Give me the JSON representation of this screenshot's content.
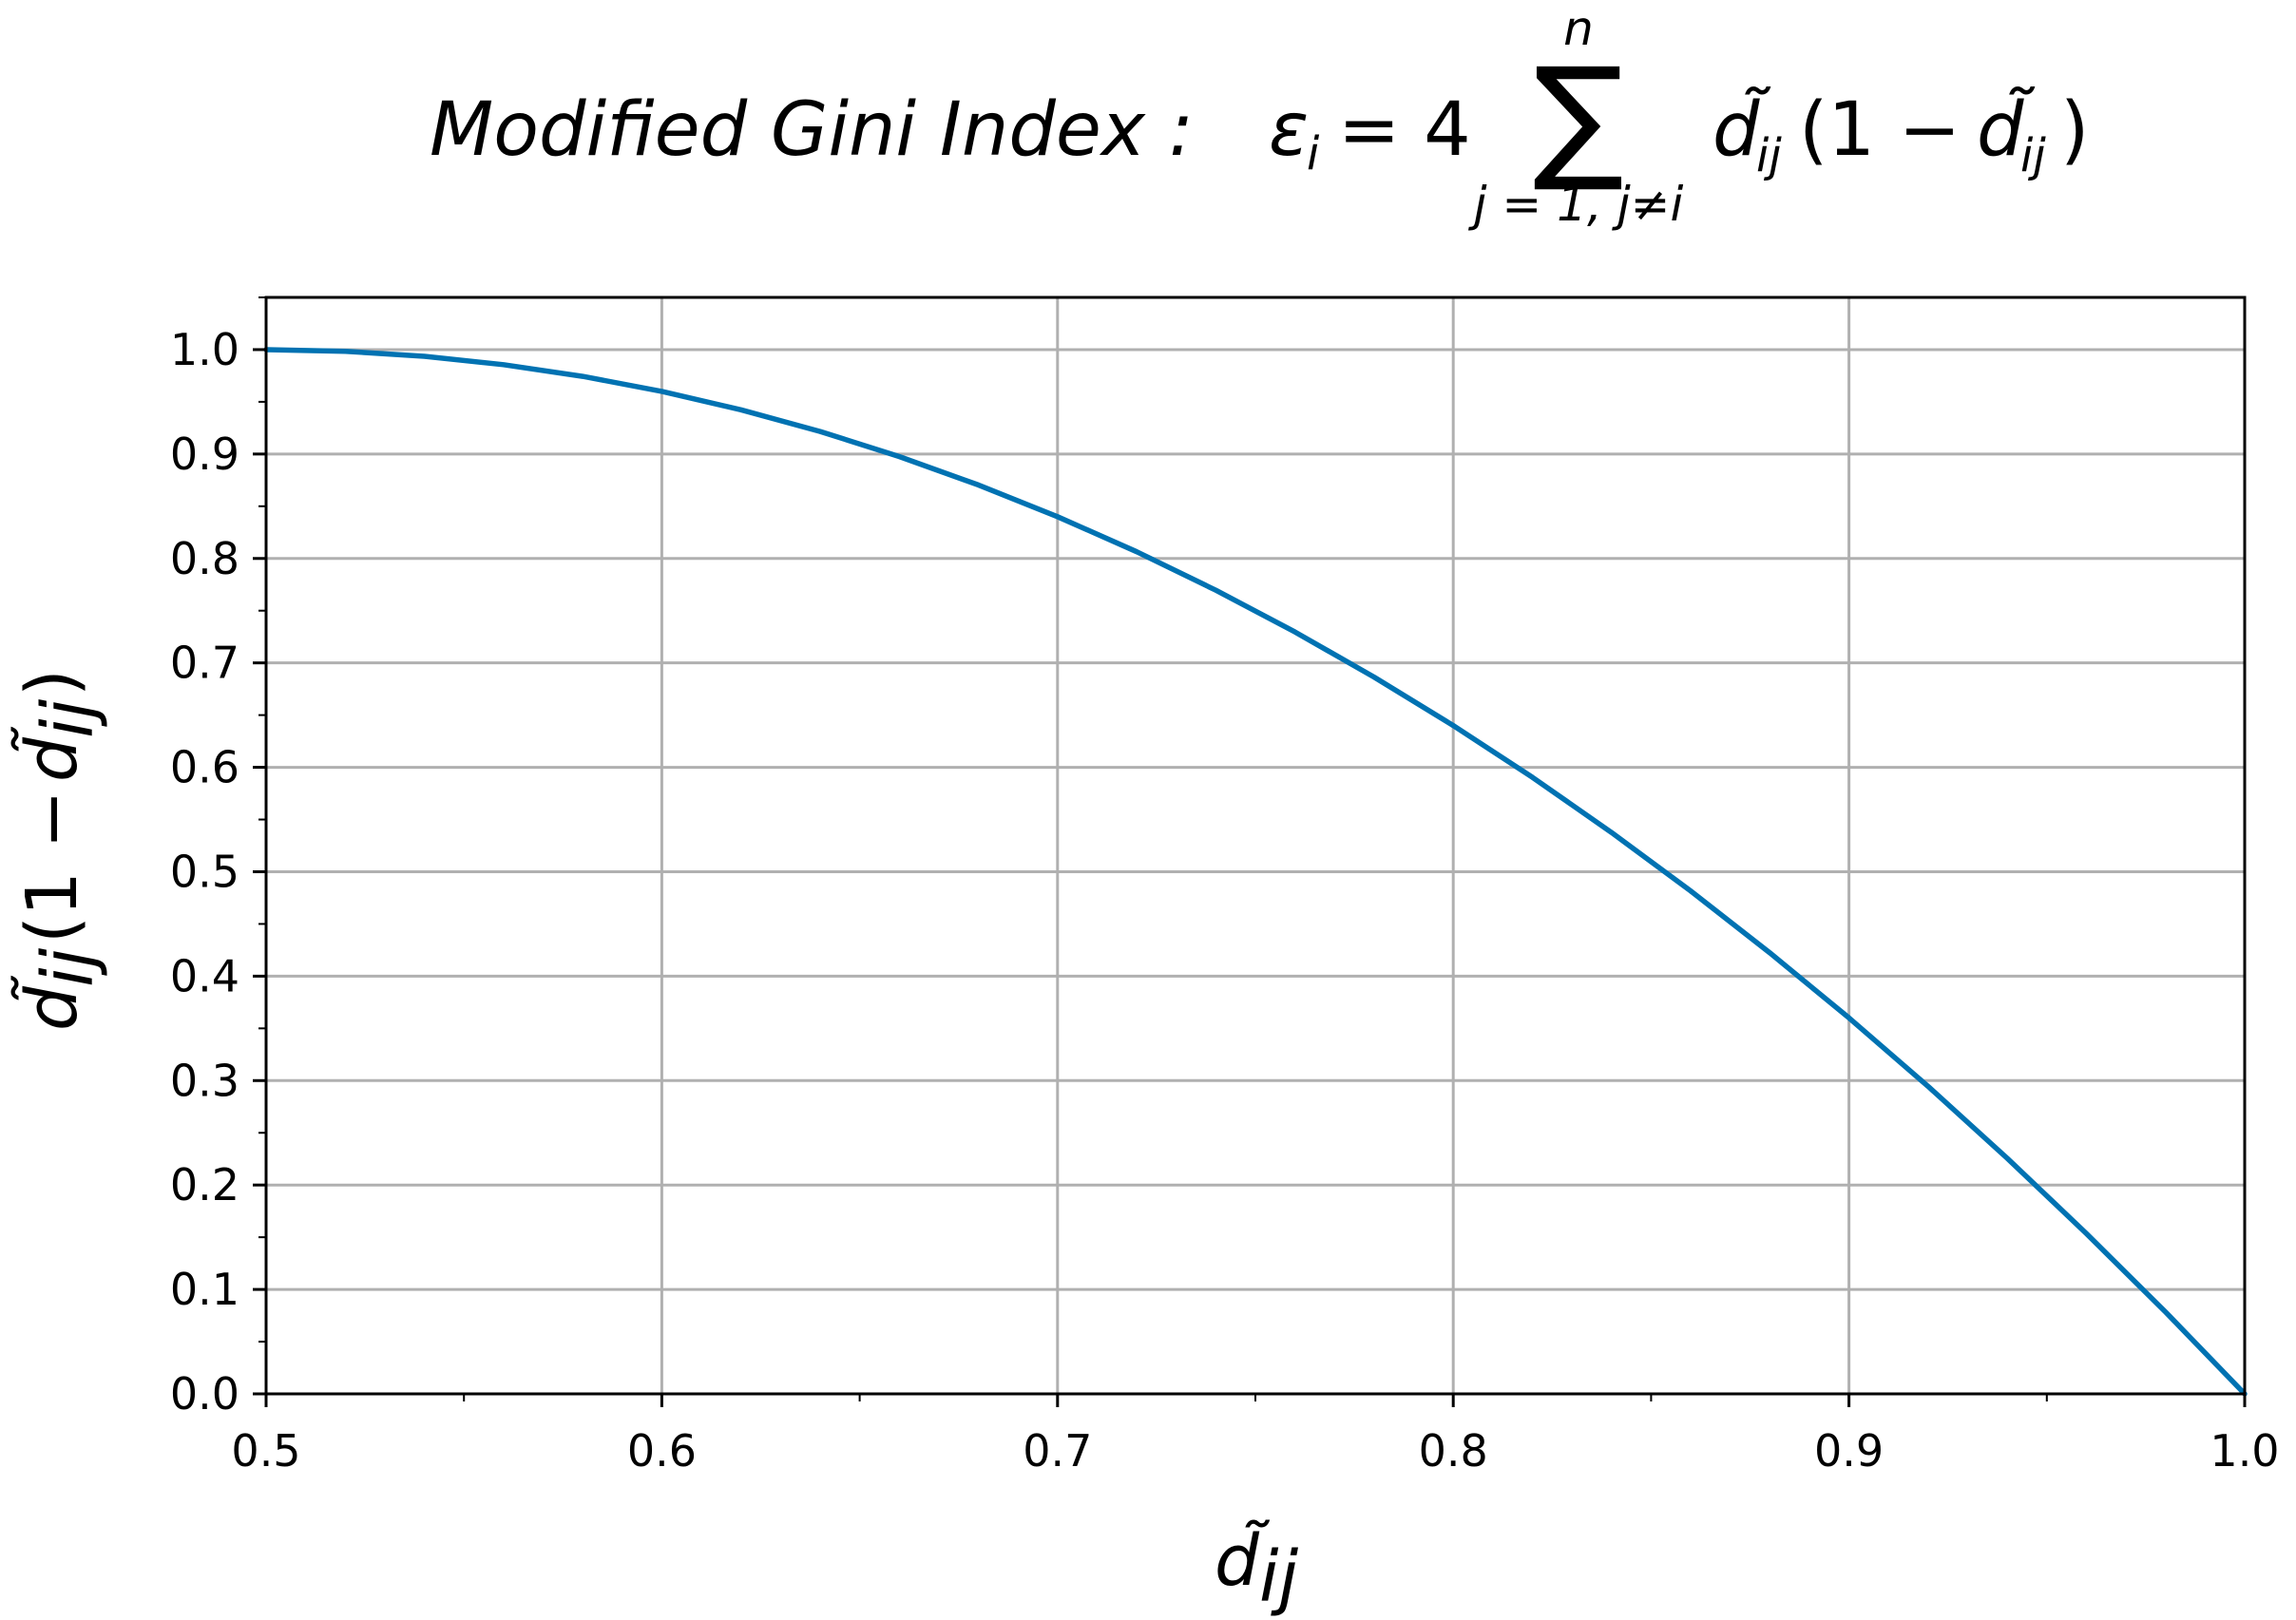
{
  "chart_data": {
    "type": "line",
    "title": {
      "lead": "Modified Gini Index :",
      "epsilon": "ε",
      "sub_i": "i",
      "equals_four": "= 4",
      "sum_symbol": "∑",
      "sum_upper": "n",
      "sum_lower": "j = 1, j≠i",
      "term_d": "d̃",
      "term_sub": "ij",
      "term_paren_open": "(1 − ",
      "term_d2": "d̃",
      "term_sub2": "ij",
      "term_paren_close": ")"
    },
    "xlabel": {
      "main": "d̃",
      "sub": "ij"
    },
    "ylabel": {
      "d": "d̃",
      "sub": "ij",
      "mid": "(1 − ",
      "d2": "d̃",
      "sub2": "ij",
      "end": ")"
    },
    "xlim": [
      0.5,
      1.0
    ],
    "ylim": [
      0.0,
      1.05
    ],
    "grid": true,
    "x_ticks": [
      0.5,
      0.6,
      0.7,
      0.8,
      0.9,
      1.0
    ],
    "x_tick_labels": [
      "0.5",
      "0.6",
      "0.7",
      "0.8",
      "0.9",
      "1.0"
    ],
    "y_ticks": [
      0.0,
      0.1,
      0.2,
      0.3,
      0.4,
      0.5,
      0.6,
      0.7,
      0.8,
      0.9,
      1.0
    ],
    "y_tick_labels": [
      "0.0",
      "0.1",
      "0.2",
      "0.3",
      "0.4",
      "0.5",
      "0.6",
      "0.7",
      "0.8",
      "0.9",
      "1.0"
    ],
    "x_minor_step": 0.05,
    "y_minor_step": 0.05,
    "series": [
      {
        "color": "#0072b2",
        "x": [
          0.5,
          0.52,
          0.54,
          0.56,
          0.58,
          0.6,
          0.62,
          0.64,
          0.66,
          0.68,
          0.7,
          0.72,
          0.74,
          0.76,
          0.78,
          0.8,
          0.82,
          0.84,
          0.86,
          0.88,
          0.9,
          0.92,
          0.94,
          0.96,
          0.98,
          1.0
        ],
        "y": [
          1.0,
          0.9984,
          0.9936,
          0.9856,
          0.9744,
          0.96,
          0.9424,
          0.9216,
          0.8976,
          0.8704,
          0.84,
          0.8064,
          0.7696,
          0.7296,
          0.6864,
          0.64,
          0.5904,
          0.5376,
          0.4816,
          0.4224,
          0.36,
          0.2944,
          0.2256,
          0.1536,
          0.0784,
          0.0
        ]
      }
    ]
  }
}
